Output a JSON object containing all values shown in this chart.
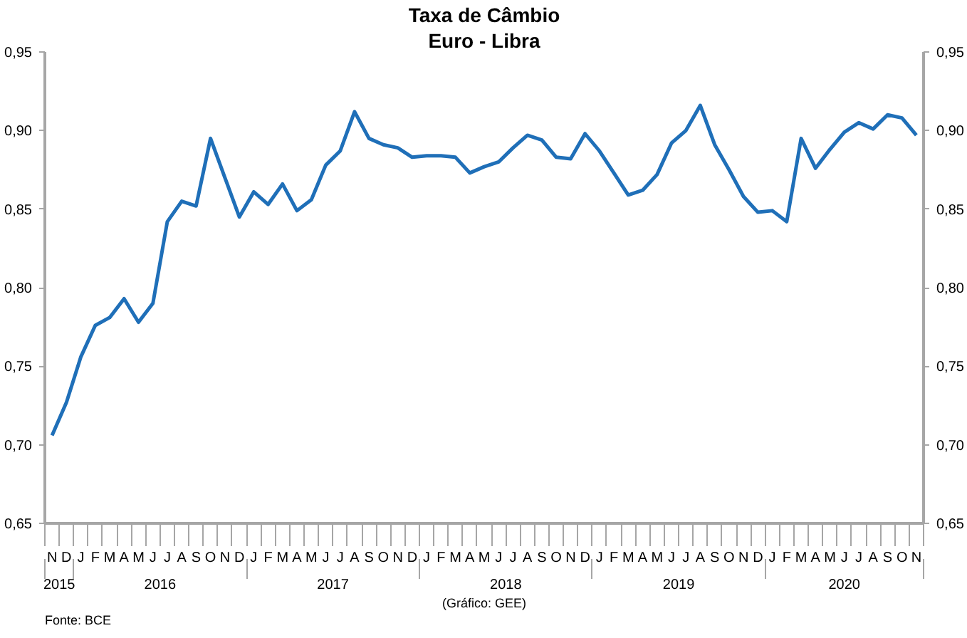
{
  "chart_data": {
    "type": "line",
    "title": "Taxa de Câmbio",
    "subtitle": "Euro - Libra",
    "series": [
      {
        "color": "#1f6fb8",
        "values": [
          0.706,
          0.727,
          0.756,
          0.776,
          0.781,
          0.793,
          0.778,
          0.79,
          0.842,
          0.855,
          0.852,
          0.895,
          0.87,
          0.845,
          0.861,
          0.853,
          0.866,
          0.849,
          0.856,
          0.878,
          0.887,
          0.912,
          0.895,
          0.891,
          0.889,
          0.883,
          0.884,
          0.884,
          0.883,
          0.873,
          0.877,
          0.88,
          0.889,
          0.897,
          0.894,
          0.883,
          0.882,
          0.898,
          0.887,
          0.873,
          0.859,
          0.862,
          0.872,
          0.892,
          0.9,
          0.916,
          0.891,
          0.875,
          0.858,
          0.848,
          0.849,
          0.842,
          0.895,
          0.876,
          0.888,
          0.899,
          0.905,
          0.901,
          0.91,
          0.908,
          0.897
        ]
      }
    ],
    "categories": [
      "N",
      "D",
      "J",
      "F",
      "M",
      "A",
      "M",
      "J",
      "J",
      "A",
      "S",
      "O",
      "N",
      "D",
      "J",
      "F",
      "M",
      "A",
      "M",
      "J",
      "J",
      "A",
      "S",
      "O",
      "N",
      "D",
      "J",
      "F",
      "M",
      "A",
      "M",
      "J",
      "J",
      "A",
      "S",
      "O",
      "N",
      "D",
      "J",
      "F",
      "M",
      "A",
      "M",
      "J",
      "J",
      "A",
      "S",
      "O",
      "N",
      "D",
      "J",
      "F",
      "M",
      "A",
      "M",
      "J",
      "J",
      "A",
      "S",
      "O",
      "N"
    ],
    "ylim": [
      0.65,
      0.95
    ],
    "yticks": [
      {
        "value": 0.65,
        "label": "0,65"
      },
      {
        "value": 0.7,
        "label": "0,70"
      },
      {
        "value": 0.75,
        "label": "0,75"
      },
      {
        "value": 0.8,
        "label": "0,80"
      },
      {
        "value": 0.85,
        "label": "0,85"
      },
      {
        "value": 0.9,
        "label": "0,90"
      },
      {
        "value": 0.95,
        "label": "0,95"
      }
    ],
    "y2lim": [
      0.65,
      0.95
    ],
    "y2ticks": [
      {
        "value": 0.65,
        "label": "0,65"
      },
      {
        "value": 0.7,
        "label": "0,70"
      },
      {
        "value": 0.75,
        "label": "0,75"
      },
      {
        "value": 0.8,
        "label": "0,80"
      },
      {
        "value": 0.85,
        "label": "0,85"
      },
      {
        "value": 0.9,
        "label": "0,90"
      },
      {
        "value": 0.95,
        "label": "0,95"
      }
    ],
    "grid": false,
    "marker": "none",
    "line_style": "solid",
    "annotations": [
      "(Gráfico: GEE)",
      "Fonte: BCE",
      "2015",
      "2016",
      "2017",
      "2018",
      "2019",
      "2020"
    ]
  }
}
